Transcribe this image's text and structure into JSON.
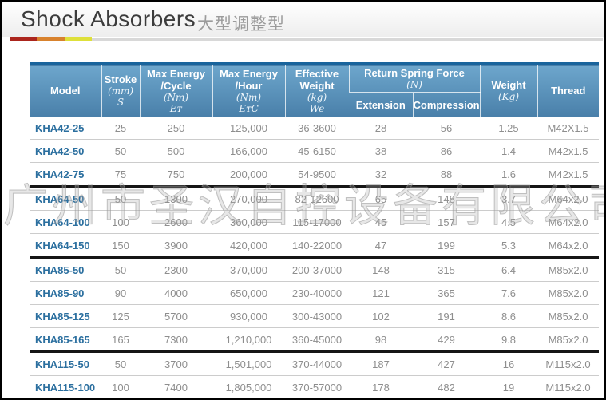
{
  "header": {
    "title": "Shock Absorbers",
    "subtitle": "大型调整型"
  },
  "watermark": "广州市圣汉自控设备有限公司",
  "accent_colors": {
    "divider_red": "#ab251d",
    "divider_orange": "#d8822d",
    "divider_yellow": "#dee03a",
    "header_blue_top": "#6da6cc",
    "header_blue_bottom": "#497fa9",
    "model_link_blue": "#2b6f9f",
    "value_gray": "#8e8e8e"
  },
  "table": {
    "headers": {
      "model": "Model",
      "stroke": {
        "t1": "Stroke",
        "unit": "(mm)",
        "sym": "S"
      },
      "energy_cycle": {
        "t1": "Max Energy",
        "t2": "/Cycle",
        "unit": "(Nm)",
        "sym": "Eᴛ"
      },
      "energy_hour": {
        "t1": "Max Energy",
        "t2": "/Hour",
        "unit": "(Nm)",
        "sym": "EᴛC"
      },
      "effective_weight": {
        "t1": "Effective",
        "t2": "Weight",
        "unit": "(kg)",
        "sym": "We"
      },
      "return_spring": {
        "t1": "Return Spring Force",
        "unit": "(N)",
        "extension": "Extension",
        "compression": "Compression"
      },
      "weight": {
        "t1": "Weight",
        "unit": "(Kg)"
      },
      "thread": "Thread"
    },
    "groups": [
      {
        "rows": [
          [
            "KHA42-25",
            "25",
            "250",
            "125,000",
            "36-3600",
            "28",
            "56",
            "1.25",
            "M42X1.5"
          ],
          [
            "KHA42-50",
            "50",
            "500",
            "166,000",
            "45-6150",
            "38",
            "86",
            "1.4",
            "M42x1.5"
          ],
          [
            "KHA42-75",
            "75",
            "750",
            "200,000",
            "54-9500",
            "32",
            "88",
            "1.6",
            "M42x1.5"
          ]
        ]
      },
      {
        "rows": [
          [
            "KHA64-50",
            "50",
            "1300",
            "270,000",
            "82-12600",
            "65",
            "148",
            "3.7",
            "M64x2.0"
          ],
          [
            "KHA64-100",
            "100",
            "2600",
            "360,000",
            "115-17000",
            "45",
            "157",
            "4.5",
            "M64x2.0"
          ],
          [
            "KHA64-150",
            "150",
            "3900",
            "420,000",
            "140-22000",
            "47",
            "199",
            "5.3",
            "M64x2.0"
          ]
        ]
      },
      {
        "rows": [
          [
            "KHA85-50",
            "50",
            "2300",
            "370,000",
            "200-37000",
            "148",
            "315",
            "6.4",
            "M85x2.0"
          ],
          [
            "KHA85-90",
            "90",
            "4000",
            "650,000",
            "230-40000",
            "121",
            "365",
            "7.6",
            "M85x2.0"
          ],
          [
            "KHA85-125",
            "125",
            "5700",
            "930,000",
            "300-43000",
            "102",
            "191",
            "8.6",
            "M85x2.0"
          ],
          [
            "KHA85-165",
            "165",
            "7300",
            "1,210,000",
            "360-45000",
            "98",
            "429",
            "9.8",
            "M85x2.0"
          ]
        ]
      },
      {
        "rows": [
          [
            "KHA115-50",
            "50",
            "3700",
            "1,501,000",
            "370-44000",
            "187",
            "427",
            "16",
            "M115x2.0"
          ],
          [
            "KHA115-100",
            "100",
            "7400",
            "1,805,000",
            "370-57000",
            "178",
            "482",
            "19",
            "M115x2.0"
          ]
        ]
      }
    ]
  }
}
